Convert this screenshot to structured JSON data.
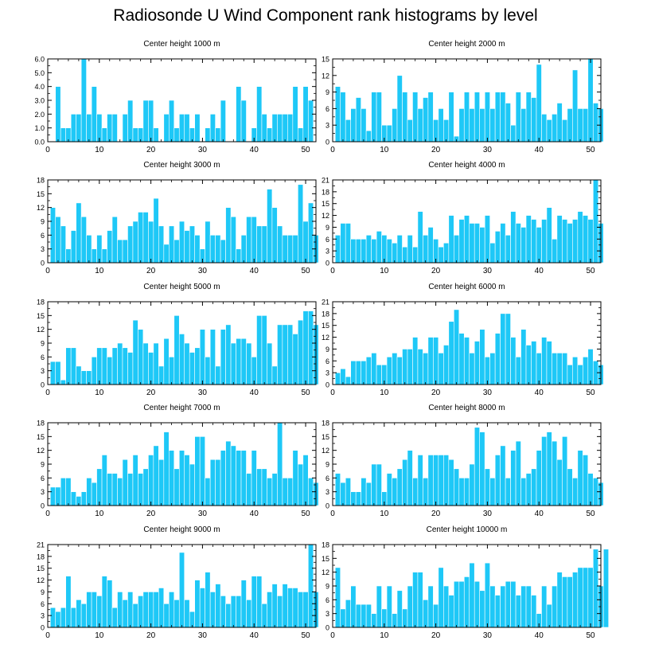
{
  "title": "Radiosonde U Wind Component rank histograms by level",
  "colors": {
    "bar": "#1ec8f7",
    "bar_edge": "#ffffff",
    "axis": "#000000"
  },
  "chart_data": [
    {
      "type": "bar",
      "title": "Center height 1000 m",
      "xlim": [
        0,
        52
      ],
      "ylim": [
        0,
        6
      ],
      "xticks": [
        "0",
        "10",
        "20",
        "30",
        "40",
        "50"
      ],
      "yticks": [
        "0.0",
        "1.0",
        "2.0",
        "3.0",
        "4.0",
        "5.0",
        "6.0"
      ],
      "values": [
        0,
        4,
        1,
        1,
        2,
        2,
        6,
        2,
        4,
        2,
        1,
        2,
        2,
        0,
        2,
        3,
        1,
        1,
        3,
        3,
        1,
        0,
        2,
        3,
        1,
        2,
        2,
        1,
        2,
        0,
        1,
        2,
        1,
        3,
        0,
        0,
        4,
        3,
        0,
        1,
        4,
        2,
        1,
        2,
        2,
        2,
        2,
        4,
        1,
        4,
        3
      ]
    },
    {
      "type": "bar",
      "title": "Center height 2000 m",
      "xlim": [
        0,
        52
      ],
      "ylim": [
        0,
        15
      ],
      "xticks": [
        "0",
        "10",
        "20",
        "30",
        "40",
        "50"
      ],
      "yticks": [
        "0",
        "3",
        "6",
        "9",
        "12",
        "15"
      ],
      "values": [
        10,
        9,
        4,
        6,
        8,
        6,
        2,
        9,
        9,
        3,
        3,
        6,
        12,
        9,
        4,
        9,
        6,
        8,
        9,
        4,
        6,
        4,
        9,
        1,
        6,
        9,
        6,
        9,
        6,
        9,
        6,
        9,
        9,
        7,
        3,
        9,
        6,
        9,
        8,
        14,
        5,
        4,
        5,
        7,
        4,
        6,
        13,
        6,
        6,
        15,
        7,
        6
      ]
    },
    {
      "type": "bar",
      "title": "Center height 3000 m",
      "xlim": [
        0,
        52
      ],
      "ylim": [
        0,
        18
      ],
      "xticks": [
        "0",
        "10",
        "20",
        "30",
        "40",
        "50"
      ],
      "yticks": [
        "0",
        "3",
        "6",
        "9",
        "12",
        "15",
        "18"
      ],
      "values": [
        12,
        10,
        8,
        3,
        7,
        13,
        10,
        6,
        3,
        6,
        3,
        7,
        10,
        5,
        5,
        8,
        9,
        11,
        11,
        9,
        14,
        8,
        4,
        8,
        5,
        9,
        7,
        8,
        6,
        3,
        9,
        6,
        6,
        5,
        12,
        10,
        3,
        6,
        10,
        10,
        8,
        8,
        16,
        12,
        8,
        6,
        6,
        6,
        17,
        9,
        13,
        6
      ]
    },
    {
      "type": "bar",
      "title": "Center height 4000 m",
      "xlim": [
        0,
        52
      ],
      "ylim": [
        0,
        21
      ],
      "xticks": [
        "0",
        "10",
        "20",
        "30",
        "40",
        "50"
      ],
      "yticks": [
        "0",
        "3",
        "6",
        "9",
        "12",
        "15",
        "18",
        "21"
      ],
      "values": [
        7,
        10,
        10,
        6,
        6,
        6,
        7,
        6,
        8,
        7,
        6,
        5,
        7,
        4,
        7,
        4,
        13,
        7,
        9,
        6,
        4,
        5,
        12,
        7,
        11,
        12,
        10,
        10,
        9,
        12,
        5,
        8,
        10,
        7,
        13,
        10,
        9,
        12,
        11,
        9,
        11,
        14,
        6,
        12,
        11,
        10,
        11,
        13,
        12,
        11,
        21,
        10
      ]
    },
    {
      "type": "bar",
      "title": "Center height 5000 m",
      "xlim": [
        0,
        52
      ],
      "ylim": [
        0,
        18
      ],
      "xticks": [
        "0",
        "10",
        "20",
        "30",
        "40",
        "50"
      ],
      "yticks": [
        "0",
        "3",
        "6",
        "9",
        "12",
        "15",
        "18"
      ],
      "values": [
        5,
        5,
        1,
        8,
        8,
        4,
        3,
        3,
        6,
        8,
        8,
        6,
        8,
        9,
        8,
        7,
        14,
        12,
        9,
        7,
        9,
        4,
        10,
        6,
        15,
        11,
        9,
        7,
        8,
        12,
        6,
        12,
        4,
        12,
        13,
        9,
        10,
        10,
        9,
        6,
        15,
        15,
        9,
        4,
        13,
        13,
        13,
        11,
        14,
        16,
        16,
        13
      ]
    },
    {
      "type": "bar",
      "title": "Center height 6000 m",
      "xlim": [
        0,
        52
      ],
      "ylim": [
        0,
        21
      ],
      "xticks": [
        "0",
        "10",
        "20",
        "30",
        "40",
        "50"
      ],
      "yticks": [
        "0",
        "3",
        "6",
        "9",
        "12",
        "15",
        "18",
        "21"
      ],
      "values": [
        3,
        4,
        2,
        6,
        6,
        6,
        7,
        8,
        5,
        5,
        7,
        8,
        7,
        9,
        9,
        12,
        9,
        8,
        12,
        12,
        8,
        10,
        16,
        19,
        13,
        12,
        8,
        11,
        14,
        7,
        8,
        13,
        18,
        18,
        12,
        7,
        14,
        10,
        11,
        8,
        12,
        11,
        8,
        8,
        8,
        5,
        7,
        5,
        7,
        9,
        6,
        5
      ]
    },
    {
      "type": "bar",
      "title": "Center height 7000 m",
      "xlim": [
        0,
        52
      ],
      "ylim": [
        0,
        18
      ],
      "xticks": [
        "0",
        "10",
        "20",
        "30",
        "40",
        "50"
      ],
      "yticks": [
        "0",
        "3",
        "6",
        "9",
        "12",
        "15",
        "18"
      ],
      "values": [
        4,
        4,
        6,
        6,
        3,
        2,
        3,
        6,
        5,
        8,
        11,
        7,
        7,
        6,
        10,
        7,
        11,
        7,
        8,
        11,
        13,
        10,
        16,
        12,
        8,
        12,
        11,
        9,
        15,
        15,
        6,
        10,
        10,
        12,
        14,
        13,
        12,
        12,
        7,
        12,
        8,
        8,
        6,
        7,
        18,
        6,
        6,
        12,
        9,
        11,
        6,
        5
      ]
    },
    {
      "type": "bar",
      "title": "Center height 8000 m",
      "xlim": [
        0,
        52
      ],
      "ylim": [
        0,
        18
      ],
      "xticks": [
        "0",
        "10",
        "20",
        "30",
        "40",
        "50"
      ],
      "yticks": [
        "0",
        "3",
        "6",
        "9",
        "12",
        "15",
        "18"
      ],
      "values": [
        7,
        5,
        6,
        3,
        3,
        6,
        5,
        9,
        9,
        3,
        7,
        6,
        8,
        10,
        12,
        6,
        11,
        6,
        11,
        11,
        11,
        11,
        10,
        8,
        6,
        6,
        9,
        17,
        16,
        8,
        6,
        11,
        13,
        6,
        12,
        14,
        6,
        7,
        8,
        12,
        15,
        16,
        14,
        10,
        15,
        8,
        6,
        12,
        11,
        7,
        6,
        5
      ]
    },
    {
      "type": "bar",
      "title": "Center height 9000 m",
      "xlim": [
        0,
        52
      ],
      "ylim": [
        0,
        21
      ],
      "xticks": [
        "0",
        "10",
        "20",
        "30",
        "40",
        "50"
      ],
      "yticks": [
        "0",
        "3",
        "6",
        "9",
        "12",
        "15",
        "18",
        "21"
      ],
      "values": [
        5,
        4,
        5,
        13,
        5,
        7,
        6,
        9,
        9,
        8,
        13,
        12,
        5,
        9,
        7,
        9,
        6,
        8,
        9,
        9,
        9,
        10,
        6,
        9,
        7,
        19,
        7,
        4,
        12,
        10,
        14,
        9,
        11,
        8,
        6,
        8,
        8,
        12,
        7,
        13,
        13,
        6,
        9,
        11,
        8,
        11,
        10,
        10,
        9,
        9,
        21,
        9
      ]
    },
    {
      "type": "bar",
      "title": "Center height 10000 m",
      "xlim": [
        0,
        52
      ],
      "ylim": [
        0,
        18
      ],
      "xticks": [
        "0",
        "10",
        "20",
        "30",
        "40",
        "50"
      ],
      "yticks": [
        "0",
        "3",
        "6",
        "9",
        "12",
        "15",
        "18"
      ],
      "values": [
        13,
        4,
        6,
        9,
        5,
        5,
        5,
        3,
        9,
        4,
        9,
        3,
        8,
        4,
        9,
        12,
        12,
        6,
        9,
        5,
        13,
        9,
        7,
        10,
        10,
        11,
        14,
        10,
        8,
        14,
        9,
        7,
        9,
        10,
        10,
        7,
        9,
        9,
        7,
        3,
        9,
        5,
        9,
        12,
        11,
        11,
        12,
        13,
        13,
        13,
        17,
        9,
        17
      ]
    }
  ]
}
